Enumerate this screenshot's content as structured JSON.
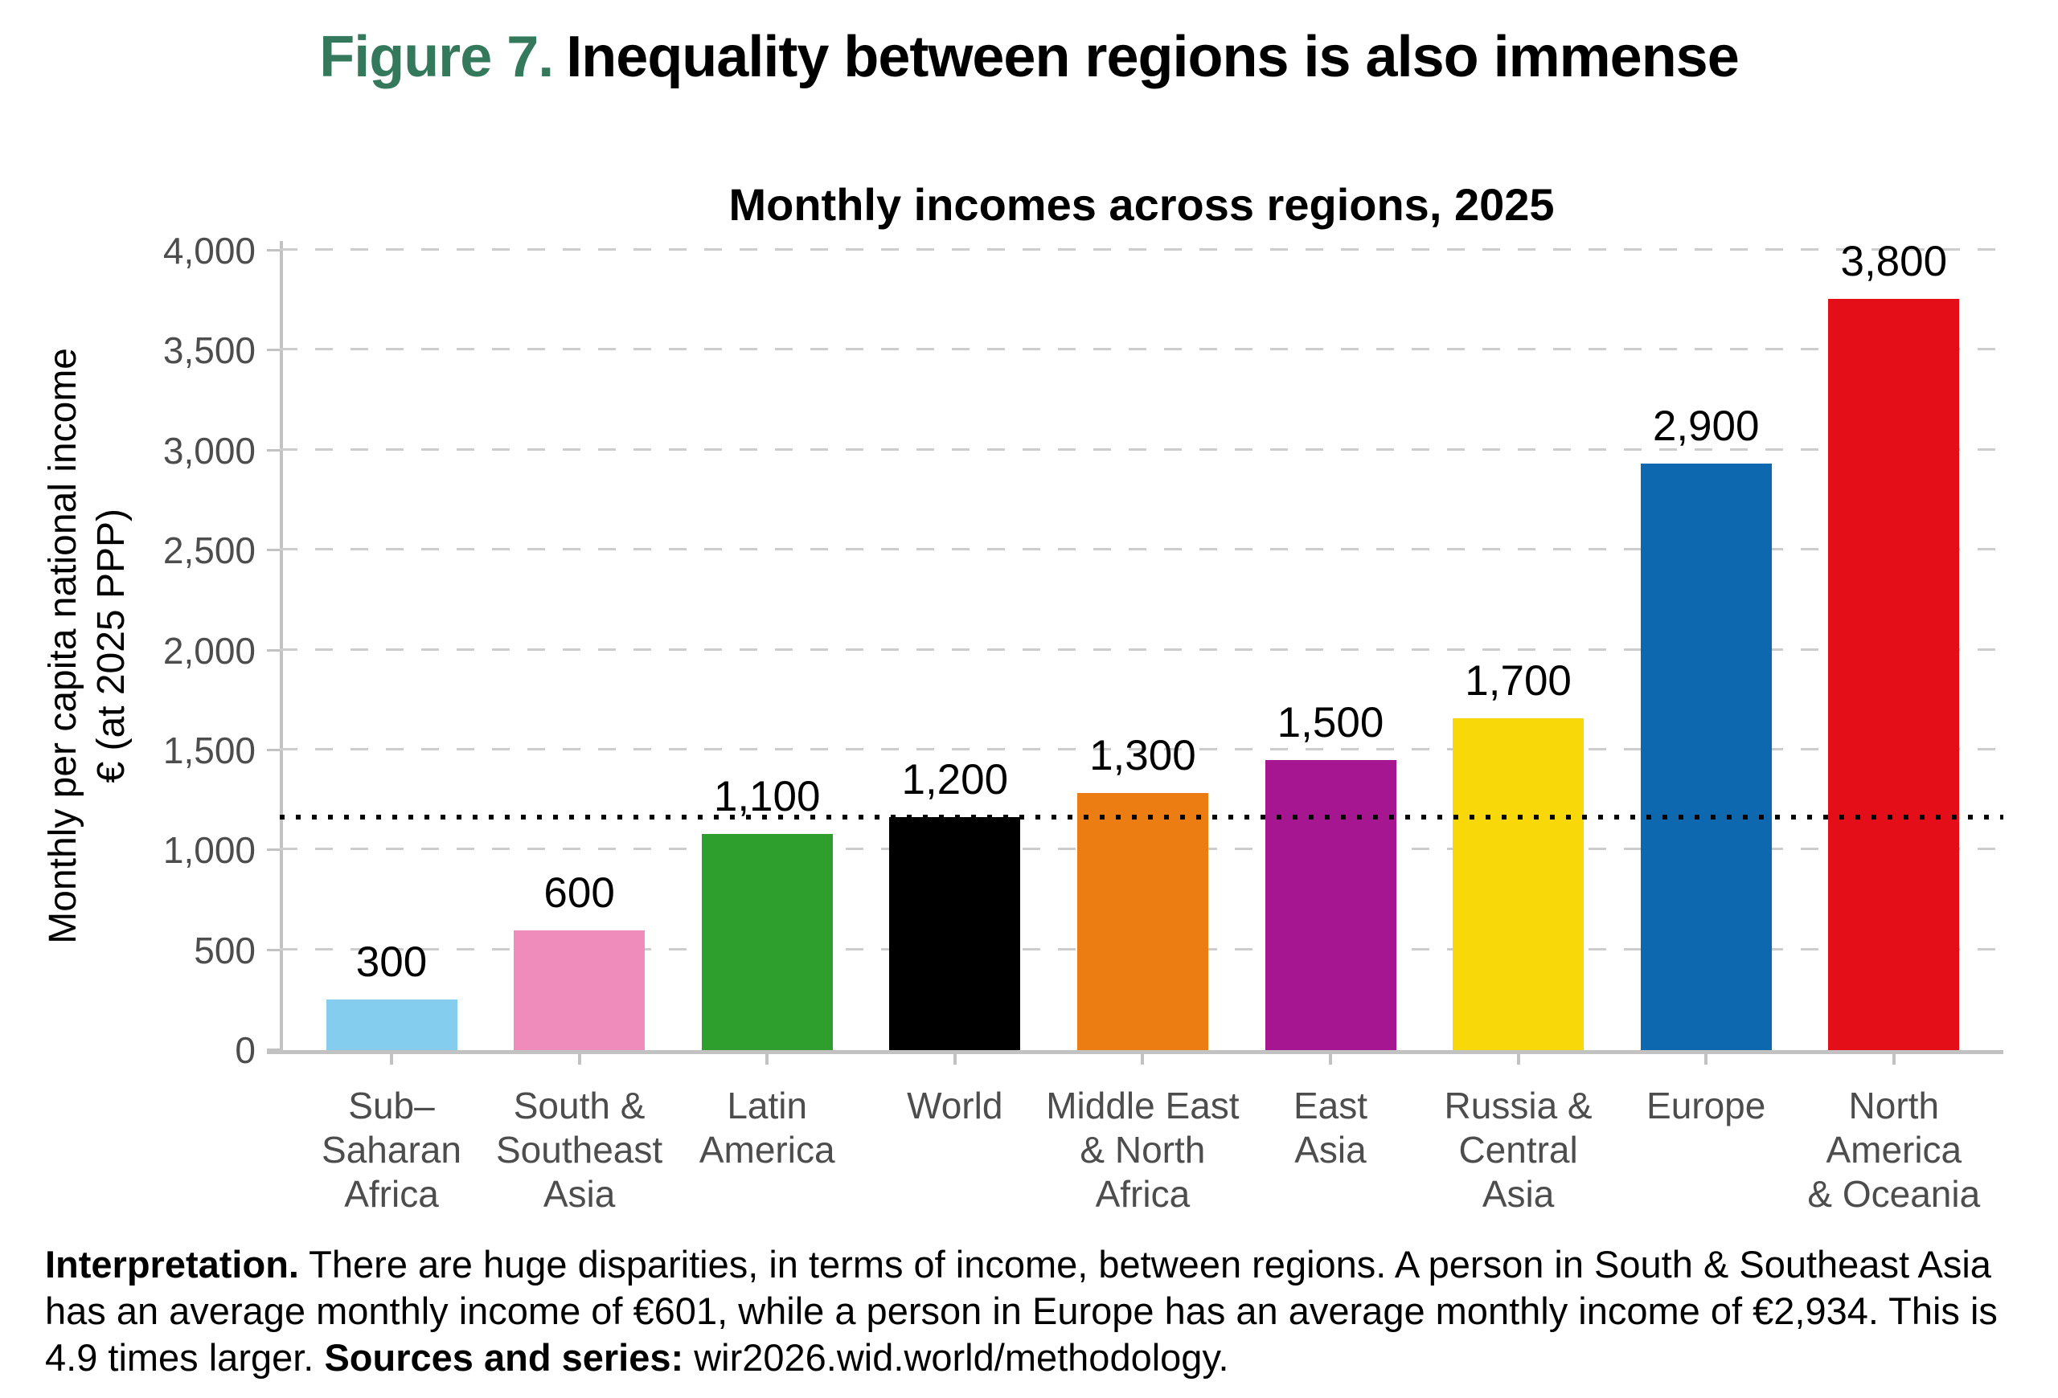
{
  "figure": {
    "number_label": "Figure 7.",
    "number_color": "#34795C",
    "title": "Inequality between regions is also immense"
  },
  "chart_data": {
    "type": "bar",
    "title": "Monthly incomes across regions, 2025",
    "ylabel": [
      "Monthly per capita national income",
      "€ (at 2025 PPP)"
    ],
    "ylim": [
      0,
      4000
    ],
    "ytick_step": 500,
    "ytick_labels": [
      "0",
      "500",
      "1,000",
      "1,500",
      "2,000",
      "2,500",
      "3,000",
      "3,500",
      "4,000"
    ],
    "grid": "horizontal-dashed",
    "legend": "none",
    "reference_line": {
      "value": 1166,
      "style": "dotted",
      "color": "#000000"
    },
    "categories": [
      {
        "lines": [
          "Sub–",
          "Saharan",
          "Africa"
        ],
        "value": 255,
        "label": "300",
        "color": "#85CDEF"
      },
      {
        "lines": [
          "South &",
          "Southeast",
          "Asia"
        ],
        "value": 601,
        "label": "600",
        "color": "#F08CBC"
      },
      {
        "lines": [
          "Latin",
          "America"
        ],
        "value": 1080,
        "label": "1,100",
        "color": "#2E9E2D"
      },
      {
        "lines": [
          "World"
        ],
        "value": 1166,
        "label": "1,200",
        "color": "#000000"
      },
      {
        "lines": [
          "Middle East",
          "& North",
          "Africa"
        ],
        "value": 1285,
        "label": "1,300",
        "color": "#EB7D13"
      },
      {
        "lines": [
          "East",
          "Asia"
        ],
        "value": 1450,
        "label": "1,500",
        "color": "#A51690"
      },
      {
        "lines": [
          "Russia &",
          "Central",
          "Asia"
        ],
        "value": 1660,
        "label": "1,700",
        "color": "#F8D808"
      },
      {
        "lines": [
          "Europe"
        ],
        "value": 2934,
        "label": "2,900",
        "color": "#0E68B0"
      },
      {
        "lines": [
          "North",
          "America",
          "& Oceania"
        ],
        "value": 3760,
        "label": "3,800",
        "color": "#E30E18"
      }
    ]
  },
  "notes": {
    "interpretation_label": "Interpretation.",
    "interpretation_text": " There are huge disparities, in terms of income, between regions. A person in South & Southeast Asia has an average monthly income of €601, while a person in Europe has an average monthly income of €2,934. This is 4.9 times larger. ",
    "sources_label": "Sources and series:",
    "sources_text": " wir2026.wid.world/methodology."
  }
}
